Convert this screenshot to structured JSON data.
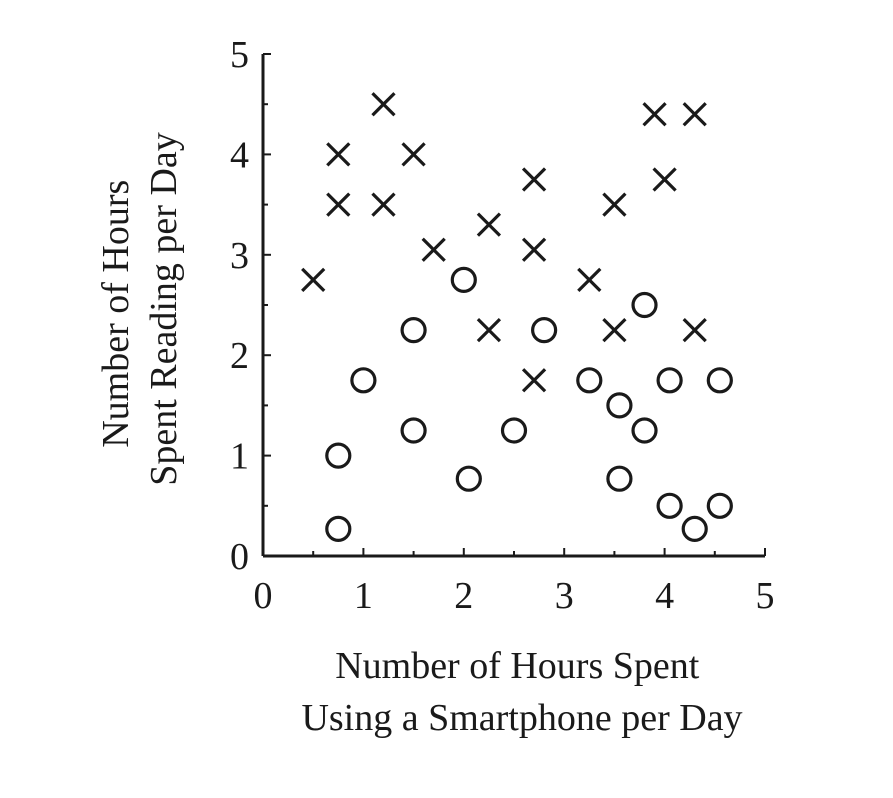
{
  "chart_data": {
    "type": "scatter",
    "title": "",
    "xlabel_lines": [
      "Number of Hours Spent",
      "Using a Smartphone per Day"
    ],
    "ylabel_lines": [
      "Number of Hours",
      "Spent Reading per Day"
    ],
    "xlim": [
      0,
      5
    ],
    "ylim": [
      0,
      5
    ],
    "xticks": [
      0,
      1,
      2,
      3,
      4,
      5
    ],
    "yticks": [
      0,
      1,
      2,
      3,
      4,
      5
    ],
    "xtick_labels": [
      "0",
      "1",
      "2",
      "3",
      "4",
      "5"
    ],
    "ytick_labels": [
      "0",
      "1",
      "2",
      "3",
      "4",
      "5"
    ],
    "grid": false,
    "legend": false,
    "series": [
      {
        "marker": "x",
        "color": "#1a1a1a",
        "points": [
          [
            0.5,
            2.75
          ],
          [
            0.75,
            4.0
          ],
          [
            0.75,
            3.5
          ],
          [
            1.2,
            4.5
          ],
          [
            1.2,
            3.5
          ],
          [
            1.5,
            4.0
          ],
          [
            1.7,
            3.05
          ],
          [
            2.25,
            3.3
          ],
          [
            2.25,
            2.25
          ],
          [
            2.7,
            3.75
          ],
          [
            2.7,
            3.05
          ],
          [
            2.7,
            1.75
          ],
          [
            3.25,
            2.75
          ],
          [
            3.5,
            3.5
          ],
          [
            3.5,
            2.25
          ],
          [
            3.9,
            4.4
          ],
          [
            4.0,
            3.75
          ],
          [
            4.3,
            4.4
          ],
          [
            4.3,
            2.25
          ]
        ]
      },
      {
        "marker": "o",
        "color": "#1a1a1a",
        "points": [
          [
            0.75,
            1.0
          ],
          [
            0.75,
            0.27
          ],
          [
            1.0,
            1.75
          ],
          [
            1.5,
            2.25
          ],
          [
            1.5,
            1.25
          ],
          [
            2.0,
            2.75
          ],
          [
            2.05,
            0.77
          ],
          [
            2.5,
            1.25
          ],
          [
            2.8,
            2.25
          ],
          [
            3.25,
            1.75
          ],
          [
            3.55,
            1.5
          ],
          [
            3.55,
            0.77
          ],
          [
            3.8,
            2.5
          ],
          [
            3.8,
            1.25
          ],
          [
            4.05,
            1.75
          ],
          [
            4.05,
            0.5
          ],
          [
            4.3,
            0.27
          ],
          [
            4.55,
            1.75
          ],
          [
            4.55,
            0.5
          ]
        ]
      }
    ]
  }
}
